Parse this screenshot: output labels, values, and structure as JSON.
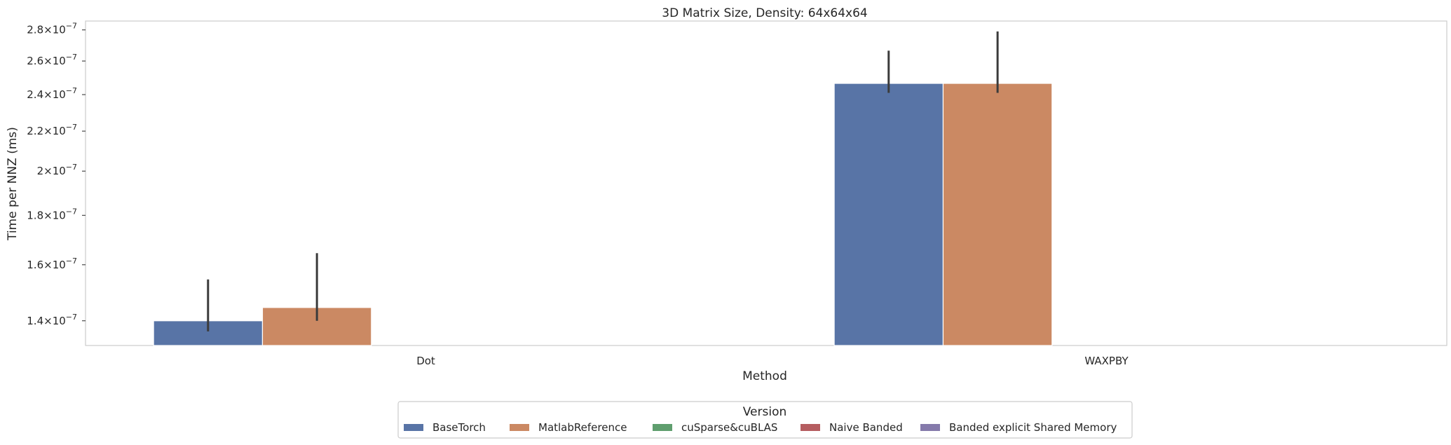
{
  "chart_data": {
    "type": "bar",
    "title": "3D Matrix Size, Density: 64x64x64",
    "xlabel": "Method",
    "ylabel": "Time per NNZ (ms)",
    "y_scale": "log",
    "ylim": [
      1.32e-07,
      2.86e-07
    ],
    "grid": false,
    "categories": [
      "Dot",
      "WAXPBY"
    ],
    "yticks": [
      {
        "value": 1.4e-07,
        "mantissa": "1.4",
        "exp": "−7"
      },
      {
        "value": 1.6e-07,
        "mantissa": "1.6",
        "exp": "−7"
      },
      {
        "value": 1.8e-07,
        "mantissa": "1.8",
        "exp": "−7"
      },
      {
        "value": 2e-07,
        "mantissa": "2",
        "exp": "−7"
      },
      {
        "value": 2.2e-07,
        "mantissa": "2.2",
        "exp": "−7"
      },
      {
        "value": 2.4e-07,
        "mantissa": "2.4",
        "exp": "−7"
      },
      {
        "value": 2.6e-07,
        "mantissa": "2.6",
        "exp": "−7"
      },
      {
        "value": 2.8e-07,
        "mantissa": "2.8",
        "exp": "−7"
      }
    ],
    "series": [
      {
        "name": "BaseTorch",
        "color": "#5874a6",
        "values": [
          1.4e-07,
          2.465e-07
        ],
        "error_low": [
          1.365e-07,
          2.41e-07
        ],
        "error_high": [
          1.545e-07,
          2.665e-07
        ]
      },
      {
        "name": "MatlabReference",
        "color": "#cb8963",
        "values": [
          1.445e-07,
          2.465e-07
        ],
        "error_low": [
          1.4e-07,
          2.41e-07
        ],
        "error_high": [
          1.645e-07,
          2.79e-07
        ]
      },
      {
        "name": "cuSparse&cuBLAS",
        "color": "#5f9e6e",
        "values": [
          null,
          null
        ]
      },
      {
        "name": "Naive Banded",
        "color": "#b55d60",
        "values": [
          null,
          null
        ]
      },
      {
        "name": "Banded explicit Shared Memory",
        "color": "#857aab",
        "values": [
          null,
          null
        ]
      }
    ],
    "legend": {
      "title": "Version",
      "position": "bottom-center"
    }
  }
}
